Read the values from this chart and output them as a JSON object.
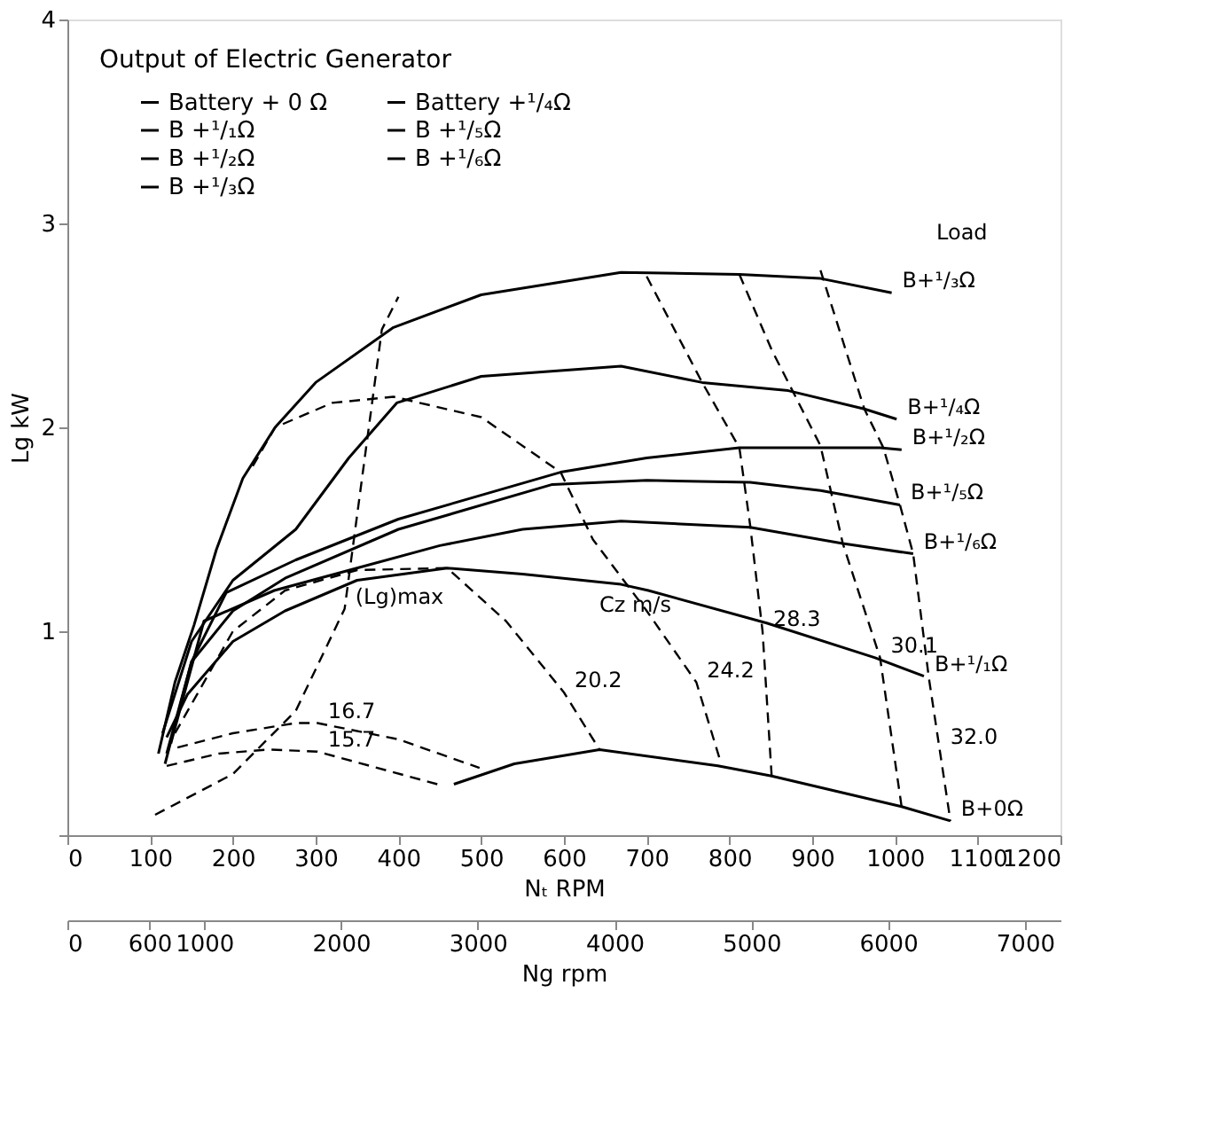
{
  "chart_data": {
    "type": "line",
    "title": "Output of Electric Generator",
    "xlabel": "Nₜ RPM",
    "ylabel": "Lg kW",
    "x2label": "Ng rpm",
    "xlim": [
      0,
      1200
    ],
    "xticks": [
      0,
      100,
      200,
      300,
      400,
      500,
      600,
      700,
      800,
      900,
      1000,
      1100,
      1200
    ],
    "ylim": [
      0,
      4
    ],
    "yticks": [
      {
        "value": 0,
        "label": null
      },
      1,
      2,
      3,
      4
    ],
    "x2lim": [
      0,
      7260
    ],
    "x2ticks": [
      0,
      600,
      1000,
      2000,
      3000,
      4000,
      5000,
      6000,
      7000
    ],
    "grid": false,
    "legend": "top left",
    "line_style": "solid",
    "series": [
      {
        "name": "Battery + 0 Ω",
        "color": "#000000",
        "x": [
          467,
          540,
          643,
          786,
          851,
          1008,
          1067
        ],
        "values": [
          0.25,
          0.35,
          0.42,
          0.34,
          0.29,
          0.14,
          0.07
        ]
      },
      {
        "name": "B +¹/₁Ω",
        "color": "#000000",
        "x": [
          120,
          145,
          200,
          263,
          350,
          459,
          550,
          669,
          702,
          845,
          976,
          1035
        ],
        "values": [
          0.48,
          0.69,
          0.95,
          1.1,
          1.25,
          1.31,
          1.28,
          1.23,
          1.2,
          1.04,
          0.87,
          0.78
        ]
      },
      {
        "name": "B +¹/₂Ω",
        "color": "#000000",
        "x": [
          118,
          150,
          192,
          276,
          400,
          596,
          700,
          812,
          982,
          1008
        ],
        "values": [
          0.35,
          0.85,
          1.19,
          1.35,
          1.55,
          1.78,
          1.85,
          1.9,
          1.9,
          1.89
        ]
      },
      {
        "name": "B +¹/₃Ω",
        "color": "#000000",
        "x": [
          110,
          130,
          153,
          180,
          212,
          251,
          300,
          394,
          500,
          669,
          812,
          910,
          996
        ],
        "values": [
          0.4,
          0.75,
          1.03,
          1.4,
          1.75,
          2.0,
          2.22,
          2.49,
          2.65,
          2.76,
          2.75,
          2.73,
          2.66
        ]
      },
      {
        "name": "Battery +¹/₄Ω",
        "color": "#000000",
        "x": [
          115,
          150,
          200,
          276,
          340,
          398,
          500,
          669,
          767,
          871,
          963,
          1002
        ],
        "values": [
          0.5,
          0.95,
          1.25,
          1.5,
          1.85,
          2.12,
          2.25,
          2.3,
          2.22,
          2.18,
          2.09,
          2.04
        ]
      },
      {
        "name": "B +¹/₅Ω",
        "color": "#000000",
        "x": [
          120,
          150,
          200,
          263,
          400,
          586,
          700,
          825,
          910,
          1006
        ],
        "values": [
          0.4,
          0.85,
          1.1,
          1.26,
          1.5,
          1.72,
          1.74,
          1.73,
          1.69,
          1.62
        ]
      },
      {
        "name": "B +¹/₆Ω",
        "color": "#000000",
        "x": [
          125,
          165,
          250,
          341,
          450,
          550,
          669,
          825,
          937,
          1022
        ],
        "values": [
          0.45,
          1.05,
          1.2,
          1.3,
          1.42,
          1.5,
          1.54,
          1.51,
          1.43,
          1.38
        ]
      },
      {
        "color": "#000000",
        "line_style": "dashed",
        "x": [
          120,
          183,
          243,
          302,
          447
        ],
        "values": [
          0.34,
          0.4,
          0.42,
          0.41,
          0.25
        ]
      },
      {
        "color": "#000000",
        "line_style": "dashed",
        "x": [
          133,
          200,
          276,
          302,
          400,
          498
        ],
        "values": [
          0.43,
          0.5,
          0.55,
          0.55,
          0.47,
          0.33
        ]
      },
      {
        "color": "#000000",
        "line_style": "dashed",
        "x": [
          130,
          200,
          263,
          350,
          459,
          530,
          600,
          643
        ],
        "values": [
          0.5,
          1.0,
          1.2,
          1.3,
          1.31,
          1.05,
          0.7,
          0.42
        ]
      },
      {
        "color": "#000000",
        "line_style": "dashed",
        "x": [
          224,
          251,
          320,
          394,
          500,
          596,
          635,
          700,
          760,
          790
        ],
        "values": [
          1.81,
          2.0,
          2.12,
          2.15,
          2.05,
          1.78,
          1.45,
          1.1,
          0.75,
          0.35
        ]
      },
      {
        "color": "#000000",
        "line_style": "dashed",
        "x": [
          700,
          767,
          812,
          825,
          840,
          851
        ],
        "values": [
          2.74,
          2.22,
          1.9,
          1.52,
          1.0,
          0.29
        ]
      },
      {
        "color": "#000000",
        "line_style": "dashed",
        "x": [
          812,
          851,
          910,
          937,
          982,
          1008
        ],
        "values": [
          2.75,
          2.38,
          1.91,
          1.43,
          0.87,
          0.14
        ]
      },
      {
        "color": "#000000",
        "line_style": "dashed",
        "x": [
          910,
          963,
          986,
          1006,
          1022,
          1041,
          1054,
          1067
        ],
        "values": [
          2.77,
          2.09,
          1.9,
          1.62,
          1.38,
          0.77,
          0.42,
          0.07
        ]
      },
      {
        "color": "#000000",
        "line_style": "dashed",
        "x": [
          106,
          200,
          276,
          335,
          380,
          400
        ],
        "values": [
          0.1,
          0.3,
          0.61,
          1.11,
          2.48,
          2.64
        ]
      }
    ],
    "annotations": [
      "Load",
      {
        "text": "B+¹/₃Ω",
        "x": 996,
        "y": 2.66
      },
      {
        "text": "B+¹/₄Ω",
        "x": 1002,
        "y": 2.04
      },
      {
        "text": "B+¹/₂Ω",
        "x": 1008,
        "y": 1.89
      },
      {
        "text": "B+¹/₅Ω",
        "x": 1006,
        "y": 1.62
      },
      {
        "text": "B+¹/₆Ω",
        "x": 1022,
        "y": 1.38
      },
      {
        "text": "B+¹/₁Ω",
        "x": 1035,
        "y": 0.78
      },
      {
        "text": "B+0Ω",
        "x": 1067,
        "y": 0.07
      },
      {
        "text": "15.7",
        "x": 302,
        "y": 0.41
      },
      {
        "text": "16.7",
        "x": 302,
        "y": 0.55
      },
      {
        "text": "20.2",
        "x": 600,
        "y": 0.7
      },
      {
        "text": "24.2",
        "x": 760,
        "y": 0.75
      },
      {
        "text": "28.3",
        "x": 840,
        "y": 1.0
      },
      {
        "text": "30.1",
        "x": 982,
        "y": 0.87
      },
      {
        "text": "32.0",
        "x": 1054,
        "y": 0.42
      },
      "Cz m/s",
      {
        "text": "(Lg)max",
        "x": 335,
        "y": 1.11
      }
    ]
  }
}
